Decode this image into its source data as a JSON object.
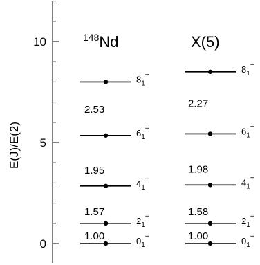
{
  "chart_data": {
    "type": "level-scheme",
    "ylabel": "E(J)/E(2)",
    "ylim": [
      -0.8,
      12
    ],
    "yticks": [
      0,
      5,
      10
    ],
    "series": [
      {
        "name_prefix": "148",
        "name": "Nd",
        "levels": [
          {
            "J": "0",
            "sub": "1",
            "sup": "+",
            "y": 0.0
          },
          {
            "J": "2",
            "sub": "1",
            "sup": "+",
            "y": 1.0
          },
          {
            "J": "4",
            "sub": "1",
            "sup": "+",
            "y": 2.85
          },
          {
            "J": "6",
            "sub": "1",
            "sup": "+",
            "y": 5.35
          },
          {
            "J": "8",
            "sub": "1",
            "sup": "+",
            "y": 8.0
          }
        ],
        "ratios": [
          "1.00",
          "1.57",
          "1.95",
          "2.53"
        ]
      },
      {
        "name_prefix": "",
        "name": "X(5)",
        "levels": [
          {
            "J": "0",
            "sub": "1",
            "sup": "+",
            "y": 0.0
          },
          {
            "J": "2",
            "sub": "1",
            "sup": "+",
            "y": 1.0
          },
          {
            "J": "4",
            "sub": "1",
            "sup": "+",
            "y": 2.9
          },
          {
            "J": "6",
            "sub": "1",
            "sup": "+",
            "y": 5.43
          },
          {
            "J": "8",
            "sub": "1",
            "sup": "+",
            "y": 8.5
          }
        ],
        "ratios": [
          "1.00",
          "1.58",
          "1.98",
          "2.27"
        ]
      }
    ]
  }
}
